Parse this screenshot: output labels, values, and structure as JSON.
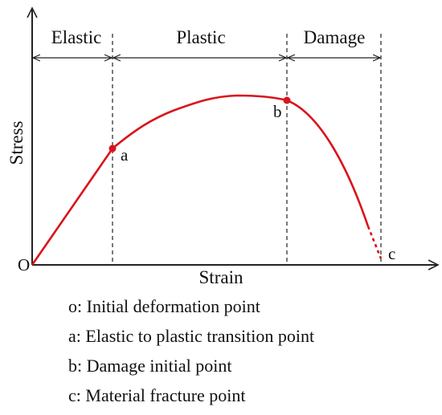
{
  "regions": [
    "Elastic",
    "Plastic",
    "Damage"
  ],
  "axes": {
    "x_label": "Strain",
    "y_label": "Stress"
  },
  "points": {
    "origin": "O",
    "a": "a",
    "b": "b",
    "c": "c"
  },
  "legend": [
    "o: Initial deformation point",
    "a: Elastic to plastic transition point",
    "b: Damage initial point",
    "c: Material fracture point"
  ]
}
